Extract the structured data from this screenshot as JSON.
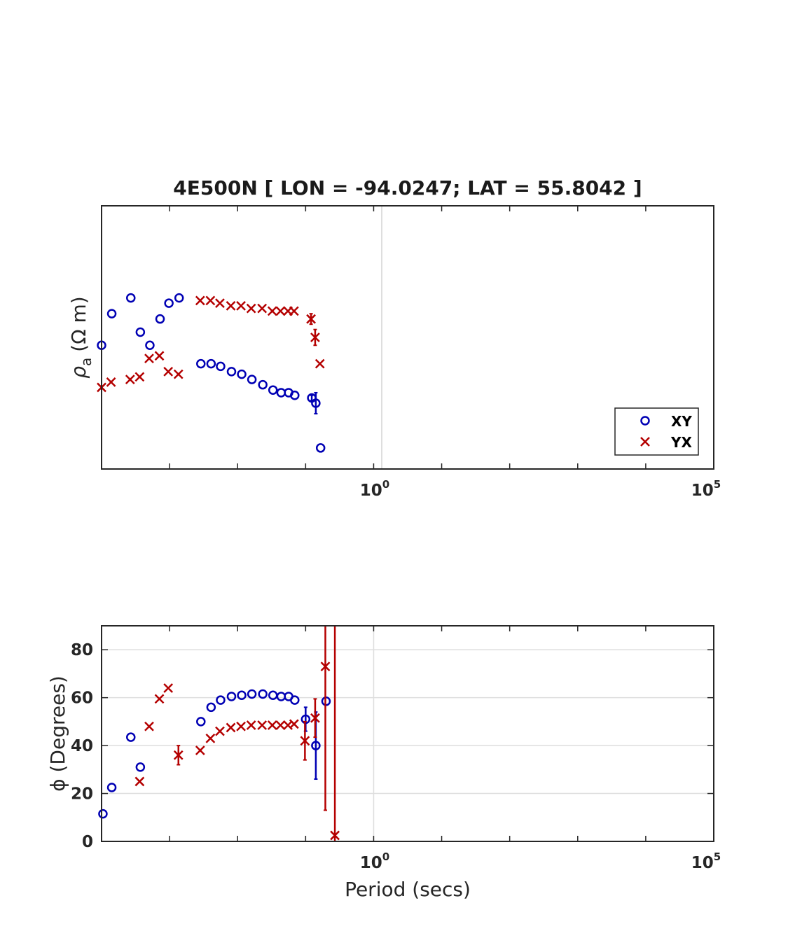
{
  "chart_data": [
    {
      "type": "scatter",
      "title": "4E500N [ LON = -94.0247; LAT = 55.8042 ]",
      "ylabel_symbol": "ρ",
      "ylabel_subscript": "a",
      "ylabel_unit": "(Ω m)",
      "xlabel": "",
      "x_scale": "log",
      "xlim_log10": [
        -4,
        5
      ],
      "ylim": [
        0,
        1
      ],
      "y_tick_labels_shown": false,
      "x_ticks": [
        {
          "base": "10",
          "exp": "0",
          "log10": 0
        },
        {
          "base": "10",
          "exp": "5",
          "log10": 5
        }
      ],
      "grid": "vertical lines at 10^0",
      "legend": {
        "placement": "bottom-right",
        "entries": [
          "XY",
          "YX"
        ]
      },
      "series": [
        {
          "name": "XY",
          "marker": "circle",
          "color": "#0000b4",
          "log10_x": [
            -4,
            -3.85,
            -3.57,
            -3.43,
            -3.29,
            -3.14,
            -3.01,
            -2.86,
            -2.54,
            -2.39,
            -2.25,
            -2.09,
            -1.94,
            -1.79,
            -1.63,
            -1.48,
            -1.36,
            -1.25,
            -1.16,
            -0.91,
            -0.85,
            -0.78
          ],
          "y": [
            0.47,
            0.59,
            0.65,
            0.52,
            0.47,
            0.57,
            0.63,
            0.65,
            0.4,
            0.4,
            0.39,
            0.37,
            0.36,
            0.34,
            0.32,
            0.3,
            0.29,
            0.29,
            0.28,
            0.27,
            0.25,
            0.08
          ],
          "y_err": [
            0,
            0,
            0,
            0,
            0,
            0,
            0,
            0,
            0,
            0,
            0,
            0,
            0,
            0,
            0,
            0,
            0,
            0,
            0,
            0.01,
            0.04,
            0
          ]
        },
        {
          "name": "YX",
          "marker": "x",
          "color": "#b40000",
          "log10_x": [
            -4,
            -3.86,
            -3.58,
            -3.44,
            -3.3,
            -3.15,
            -3.02,
            -2.87,
            -2.55,
            -2.4,
            -2.26,
            -2.1,
            -1.95,
            -1.8,
            -1.64,
            -1.49,
            -1.37,
            -1.26,
            -1.17,
            -0.92,
            -0.86,
            -0.79
          ],
          "y": [
            0.31,
            0.33,
            0.34,
            0.35,
            0.42,
            0.43,
            0.37,
            0.36,
            0.64,
            0.64,
            0.63,
            0.62,
            0.62,
            0.61,
            0.61,
            0.6,
            0.6,
            0.6,
            0.6,
            0.57,
            0.5,
            0.4
          ],
          "y_err": [
            0,
            0,
            0,
            0,
            0,
            0,
            0,
            0,
            0,
            0,
            0,
            0,
            0,
            0,
            0,
            0,
            0,
            0,
            0,
            0.02,
            0.03,
            0
          ]
        }
      ]
    },
    {
      "type": "scatter",
      "title": "",
      "ylabel": "ϕ (Degrees)",
      "xlabel": "Period (secs)",
      "x_scale": "log",
      "xlim_log10": [
        -4,
        5
      ],
      "ylim": [
        0,
        90
      ],
      "y_ticks": [
        0,
        20,
        40,
        60,
        80
      ],
      "x_ticks": [
        {
          "base": "10",
          "exp": "0",
          "log10": 0
        },
        {
          "base": "10",
          "exp": "5",
          "log10": 5
        }
      ],
      "grid": "on",
      "series": [
        {
          "name": "XY",
          "marker": "circle",
          "color": "#0000b4",
          "log10_x": [
            -3.98,
            -3.85,
            -3.57,
            -3.43,
            -2.54,
            -2.39,
            -2.25,
            -2.09,
            -1.94,
            -1.79,
            -1.63,
            -1.48,
            -1.36,
            -1.25,
            -1.16,
            -1.0,
            -0.85,
            -0.7
          ],
          "y": [
            11.5,
            22.5,
            43.5,
            31,
            50,
            56,
            59,
            60.5,
            61,
            61.5,
            61.5,
            61,
            60.5,
            60.5,
            59,
            51,
            40,
            58.5
          ],
          "y_err": [
            0,
            0,
            0,
            0,
            0,
            0,
            0,
            0,
            0,
            0,
            0,
            0,
            0,
            0,
            0,
            5,
            14,
            0
          ]
        },
        {
          "name": "YX",
          "marker": "x",
          "color": "#b40000",
          "log10_x": [
            -3.44,
            -3.3,
            -3.15,
            -3.02,
            -2.87,
            -2.55,
            -2.4,
            -2.26,
            -2.1,
            -1.95,
            -1.8,
            -1.64,
            -1.49,
            -1.37,
            -1.26,
            -1.17,
            -1.01,
            -0.86,
            -0.71,
            -0.57
          ],
          "y": [
            25,
            48,
            59.5,
            64,
            36,
            38,
            43,
            46,
            47.5,
            48,
            48.5,
            48.5,
            48.5,
            48.5,
            48.5,
            49,
            42,
            51.5,
            73,
            2.5
          ],
          "y_err": [
            0,
            0,
            0,
            0,
            4,
            0,
            0,
            0,
            0,
            0,
            0,
            0,
            0,
            0,
            0,
            0,
            8,
            8,
            60,
            90
          ]
        }
      ]
    }
  ]
}
